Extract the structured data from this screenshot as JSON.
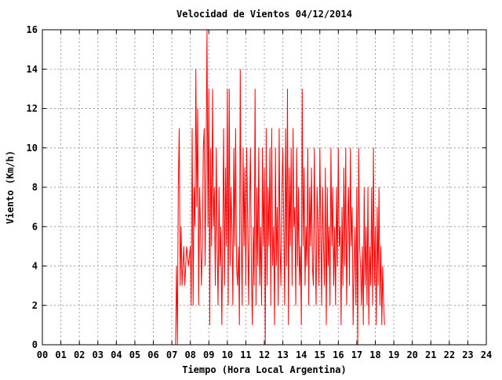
{
  "chart_data": {
    "type": "line",
    "title": "Velocidad de Vientos 04/12/2014",
    "xlabel": "Tiempo (Hora Local Argentina)",
    "ylabel": "Viento (Km/h)",
    "xlim": [
      0,
      24
    ],
    "ylim": [
      0,
      16
    ],
    "x_ticks": [
      0,
      1,
      2,
      3,
      4,
      5,
      6,
      7,
      8,
      9,
      10,
      11,
      12,
      13,
      14,
      15,
      16,
      17,
      18,
      19,
      20,
      21,
      22,
      23,
      24
    ],
    "x_tick_labels": [
      "00",
      "01",
      "02",
      "03",
      "04",
      "05",
      "06",
      "07",
      "08",
      "09",
      "10",
      "11",
      "12",
      "13",
      "14",
      "15",
      "16",
      "17",
      "18",
      "19",
      "20",
      "21",
      "22",
      "23",
      "24"
    ],
    "y_ticks": [
      0,
      2,
      4,
      6,
      8,
      10,
      12,
      14,
      16
    ],
    "y_tick_labels": [
      "0",
      "2",
      "4",
      "6",
      "8",
      "10",
      "12",
      "14",
      "16"
    ],
    "grid": true,
    "series": [
      {
        "name": "",
        "color": "#ff0000",
        "x": [
          7.2,
          7.25,
          7.3,
          7.35,
          7.4,
          7.45,
          7.5,
          7.55,
          7.6,
          7.65,
          7.7,
          7.8,
          7.9,
          8.0,
          8.05,
          8.1,
          8.15,
          8.2,
          8.25,
          8.3,
          8.35,
          8.4,
          8.45,
          8.5,
          8.55,
          8.6,
          8.65,
          8.7,
          8.75,
          8.8,
          8.85,
          8.9,
          8.95,
          9.0,
          9.05,
          9.1,
          9.15,
          9.2,
          9.25,
          9.3,
          9.35,
          9.4,
          9.45,
          9.5,
          9.55,
          9.6,
          9.65,
          9.7,
          9.75,
          9.8,
          9.85,
          9.9,
          9.95,
          10.0,
          10.05,
          10.1,
          10.15,
          10.2,
          10.25,
          10.3,
          10.35,
          10.4,
          10.45,
          10.5,
          10.55,
          10.6,
          10.65,
          10.7,
          10.75,
          10.8,
          10.85,
          10.9,
          10.95,
          11.0,
          11.05,
          11.1,
          11.15,
          11.2,
          11.25,
          11.3,
          11.35,
          11.4,
          11.45,
          11.5,
          11.55,
          11.6,
          11.65,
          11.7,
          11.75,
          11.8,
          11.85,
          11.9,
          11.95,
          12.0,
          12.05,
          12.1,
          12.15,
          12.2,
          12.25,
          12.3,
          12.35,
          12.4,
          12.45,
          12.5,
          12.55,
          12.6,
          12.65,
          12.7,
          12.75,
          12.8,
          12.85,
          12.9,
          12.95,
          13.0,
          13.05,
          13.1,
          13.15,
          13.2,
          13.25,
          13.3,
          13.35,
          13.4,
          13.45,
          13.5,
          13.55,
          13.6,
          13.65,
          13.7,
          13.75,
          13.8,
          13.85,
          13.9,
          13.95,
          14.0,
          14.05,
          14.1,
          14.15,
          14.2,
          14.25,
          14.3,
          14.35,
          14.4,
          14.45,
          14.5,
          14.55,
          14.6,
          14.65,
          14.7,
          14.75,
          14.8,
          14.85,
          14.9,
          14.95,
          15.0,
          15.05,
          15.1,
          15.15,
          15.2,
          15.25,
          15.3,
          15.35,
          15.4,
          15.45,
          15.5,
          15.55,
          15.6,
          15.65,
          15.7,
          15.75,
          15.8,
          15.85,
          15.9,
          15.95,
          16.0,
          16.05,
          16.1,
          16.15,
          16.2,
          16.25,
          16.3,
          16.35,
          16.4,
          16.45,
          16.5,
          16.55,
          16.6,
          16.65,
          16.7,
          16.75,
          16.8,
          16.85,
          16.9,
          16.95,
          17.0,
          17.05,
          17.1,
          17.15,
          17.2,
          17.25,
          17.3,
          17.35,
          17.4,
          17.45,
          17.5,
          17.55,
          17.6,
          17.65,
          17.7,
          17.75,
          17.8,
          17.85,
          17.9,
          17.95,
          18.0,
          18.05,
          18.1,
          18.15,
          18.2,
          18.25,
          18.3,
          18.35,
          18.4,
          18.45,
          18.5
        ],
        "y": [
          0,
          4,
          0,
          8,
          11,
          3,
          6,
          3,
          4,
          5,
          3,
          5,
          4,
          5,
          2,
          11,
          2,
          8,
          6,
          14,
          7,
          12,
          2,
          8,
          6,
          3,
          5,
          10,
          11,
          4,
          9,
          16,
          6,
          13,
          1,
          10,
          5,
          13,
          6,
          8,
          3,
          10,
          5,
          2,
          8,
          4,
          6,
          1,
          5,
          11,
          3,
          9,
          5,
          13,
          2,
          13,
          4,
          8,
          6,
          2,
          10,
          5,
          11,
          4,
          3,
          5,
          1,
          14,
          6,
          2,
          10,
          5,
          9,
          3,
          10,
          6,
          2,
          7,
          10,
          4,
          1,
          6,
          3,
          13,
          2,
          8,
          4,
          10,
          3,
          6,
          2,
          10,
          5,
          9,
          0,
          11,
          3,
          8,
          5,
          10,
          2,
          11,
          4,
          6,
          1,
          10,
          4,
          7,
          2,
          11,
          5,
          3,
          8,
          10,
          6,
          2,
          11,
          4,
          13,
          1,
          9,
          5,
          10,
          3,
          11,
          6,
          7,
          2,
          10,
          4,
          8,
          3,
          5,
          1,
          13,
          5,
          9,
          3,
          6,
          4,
          10,
          2,
          8,
          5,
          9,
          4,
          3,
          10,
          5,
          2,
          8,
          6,
          3,
          10,
          6,
          2,
          8,
          5,
          3,
          9,
          1,
          8,
          4,
          6,
          2,
          10,
          5,
          8,
          3,
          6,
          2,
          8,
          4,
          10,
          5,
          6,
          1,
          7,
          3,
          9,
          4,
          10,
          2,
          6,
          8,
          3,
          10,
          5,
          7,
          1,
          4,
          6,
          2,
          8,
          0,
          10,
          5,
          4,
          2,
          5,
          1,
          8,
          3,
          6,
          2,
          8,
          1,
          5,
          3,
          8,
          2,
          10,
          3,
          6,
          1,
          7,
          3,
          8,
          2,
          5,
          1,
          4,
          2,
          1
        ]
      }
    ]
  }
}
